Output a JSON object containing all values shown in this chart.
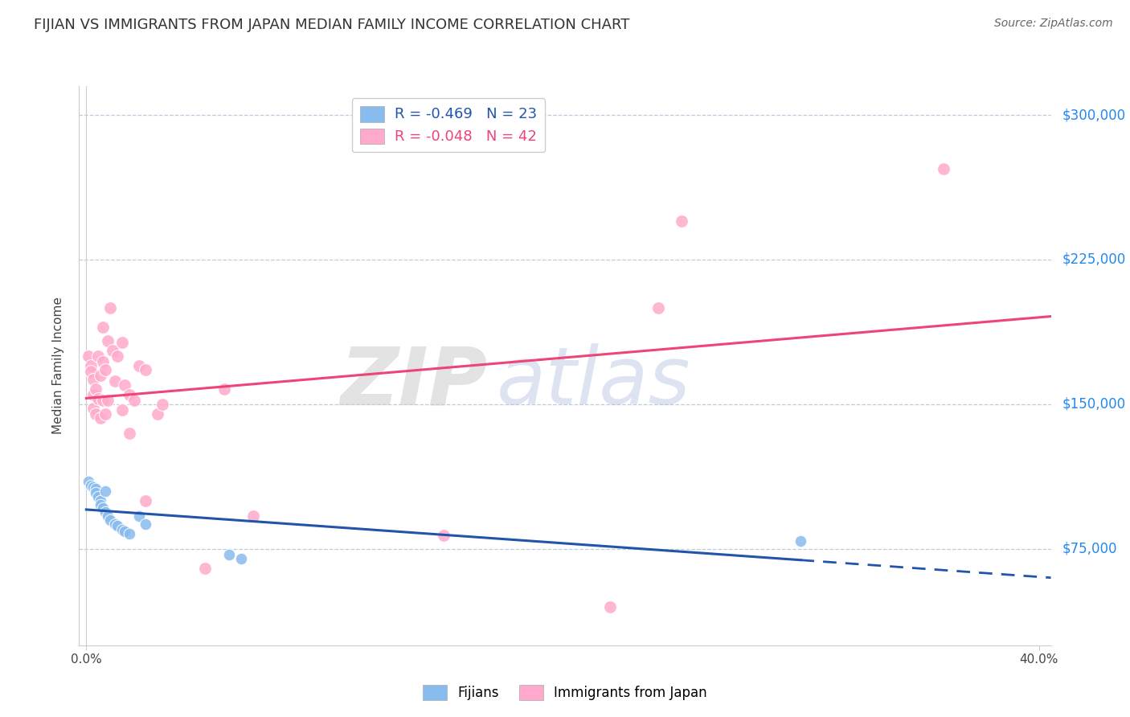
{
  "title": "FIJIAN VS IMMIGRANTS FROM JAPAN MEDIAN FAMILY INCOME CORRELATION CHART",
  "source": "Source: ZipAtlas.com",
  "ylabel": "Median Family Income",
  "ytick_labels": [
    "$75,000",
    "$150,000",
    "$225,000",
    "$300,000"
  ],
  "ytick_values": [
    75000,
    150000,
    225000,
    300000
  ],
  "ymin": 25000,
  "ymax": 315000,
  "xmin": -0.003,
  "xmax": 0.405,
  "legend_r1": "R = -0.469",
  "legend_n1": "N = 23",
  "legend_r2": "R = -0.048",
  "legend_n2": "N = 42",
  "color_blue": "#88BBEE",
  "color_pink": "#FFAACC",
  "color_blue_line": "#2255AA",
  "color_pink_line": "#EE4477",
  "fijian_points": [
    [
      0.001,
      110000
    ],
    [
      0.002,
      108000
    ],
    [
      0.003,
      107000
    ],
    [
      0.004,
      106000
    ],
    [
      0.004,
      104000
    ],
    [
      0.005,
      102000
    ],
    [
      0.006,
      100000
    ],
    [
      0.006,
      98000
    ],
    [
      0.007,
      96000
    ],
    [
      0.008,
      105000
    ],
    [
      0.008,
      94000
    ],
    [
      0.009,
      92000
    ],
    [
      0.01,
      90000
    ],
    [
      0.012,
      88000
    ],
    [
      0.013,
      87000
    ],
    [
      0.015,
      85000
    ],
    [
      0.016,
      84000
    ],
    [
      0.018,
      83000
    ],
    [
      0.022,
      92000
    ],
    [
      0.025,
      88000
    ],
    [
      0.06,
      72000
    ],
    [
      0.065,
      70000
    ],
    [
      0.3,
      79000
    ]
  ],
  "japan_points": [
    [
      0.001,
      175000
    ],
    [
      0.002,
      170000
    ],
    [
      0.002,
      167000
    ],
    [
      0.003,
      163000
    ],
    [
      0.003,
      155000
    ],
    [
      0.003,
      148000
    ],
    [
      0.004,
      158000
    ],
    [
      0.004,
      145000
    ],
    [
      0.005,
      175000
    ],
    [
      0.005,
      153000
    ],
    [
      0.006,
      165000
    ],
    [
      0.006,
      143000
    ],
    [
      0.007,
      190000
    ],
    [
      0.007,
      172000
    ],
    [
      0.007,
      152000
    ],
    [
      0.008,
      168000
    ],
    [
      0.008,
      145000
    ],
    [
      0.009,
      183000
    ],
    [
      0.009,
      152000
    ],
    [
      0.01,
      200000
    ],
    [
      0.011,
      178000
    ],
    [
      0.012,
      162000
    ],
    [
      0.013,
      175000
    ],
    [
      0.015,
      182000
    ],
    [
      0.015,
      147000
    ],
    [
      0.016,
      160000
    ],
    [
      0.018,
      155000
    ],
    [
      0.018,
      135000
    ],
    [
      0.02,
      152000
    ],
    [
      0.022,
      170000
    ],
    [
      0.025,
      168000
    ],
    [
      0.025,
      100000
    ],
    [
      0.03,
      145000
    ],
    [
      0.032,
      150000
    ],
    [
      0.05,
      65000
    ],
    [
      0.058,
      158000
    ],
    [
      0.07,
      92000
    ],
    [
      0.15,
      82000
    ],
    [
      0.22,
      45000
    ],
    [
      0.24,
      200000
    ],
    [
      0.25,
      245000
    ],
    [
      0.36,
      272000
    ]
  ],
  "watermark_zip": "ZIP",
  "watermark_atlas": "atlas",
  "background_color": "#FFFFFF"
}
